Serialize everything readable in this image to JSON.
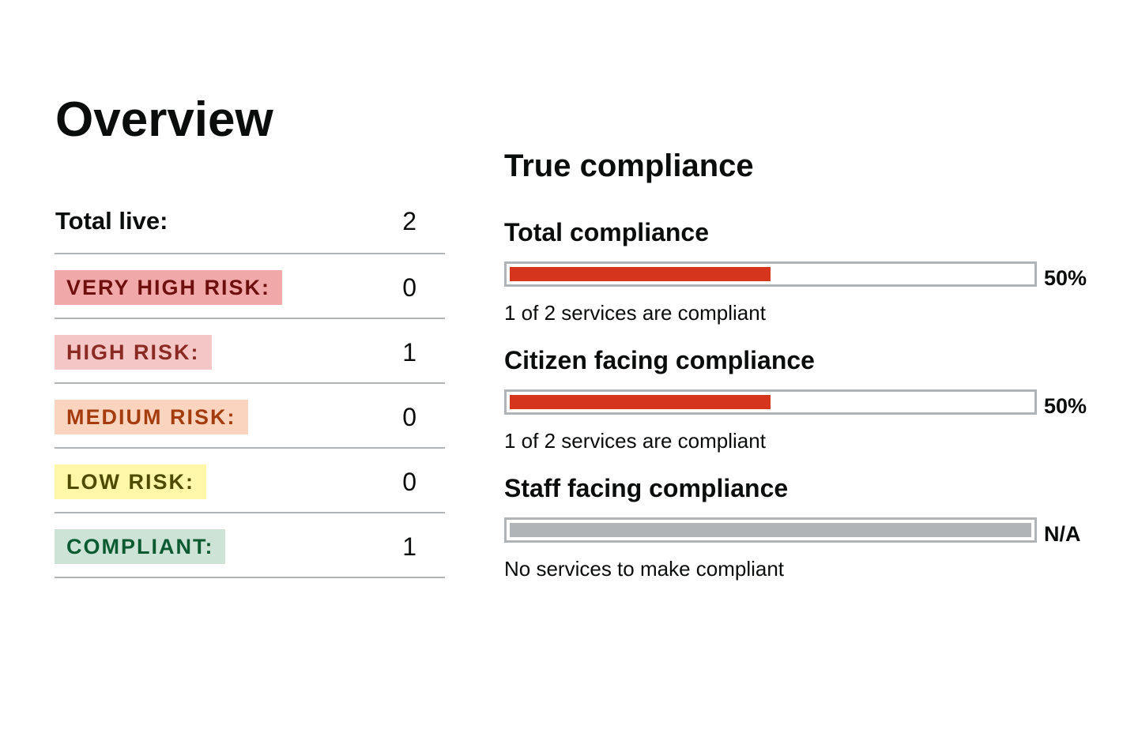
{
  "overview": {
    "title": "Overview",
    "total_live_label": "Total live:",
    "total_live_count": "2",
    "risks": [
      {
        "label": "VERY HIGH RISK:",
        "count": "0",
        "bg": "#f0a8a8",
        "fg": "#6e0e0e"
      },
      {
        "label": "HIGH RISK:",
        "count": "1",
        "bg": "#f4c6c6",
        "fg": "#8a2a22"
      },
      {
        "label": "MEDIUM RISK:",
        "count": "0",
        "bg": "#fbd4c0",
        "fg": "#a43c0e"
      },
      {
        "label": "LOW RISK:",
        "count": "0",
        "bg": "#fff7a8",
        "fg": "#4e4a00"
      },
      {
        "label": "COMPLIANT:",
        "count": "1",
        "bg": "#cce3d6",
        "fg": "#0b5a32"
      }
    ]
  },
  "compliance": {
    "title": "True compliance",
    "metrics": [
      {
        "title": "Total compliance",
        "value": "50%",
        "fraction": 0.5,
        "color": "#d4351c",
        "description": "1 of 2 services are compliant"
      },
      {
        "title": "Citizen facing compliance",
        "value": "50%",
        "fraction": 0.5,
        "color": "#d4351c",
        "description": "1 of 2 services are compliant"
      },
      {
        "title": "Staff facing compliance",
        "value": "N/A",
        "fraction": 1.0,
        "color": "#b1b4b6",
        "description": "No services to make compliant"
      }
    ]
  }
}
